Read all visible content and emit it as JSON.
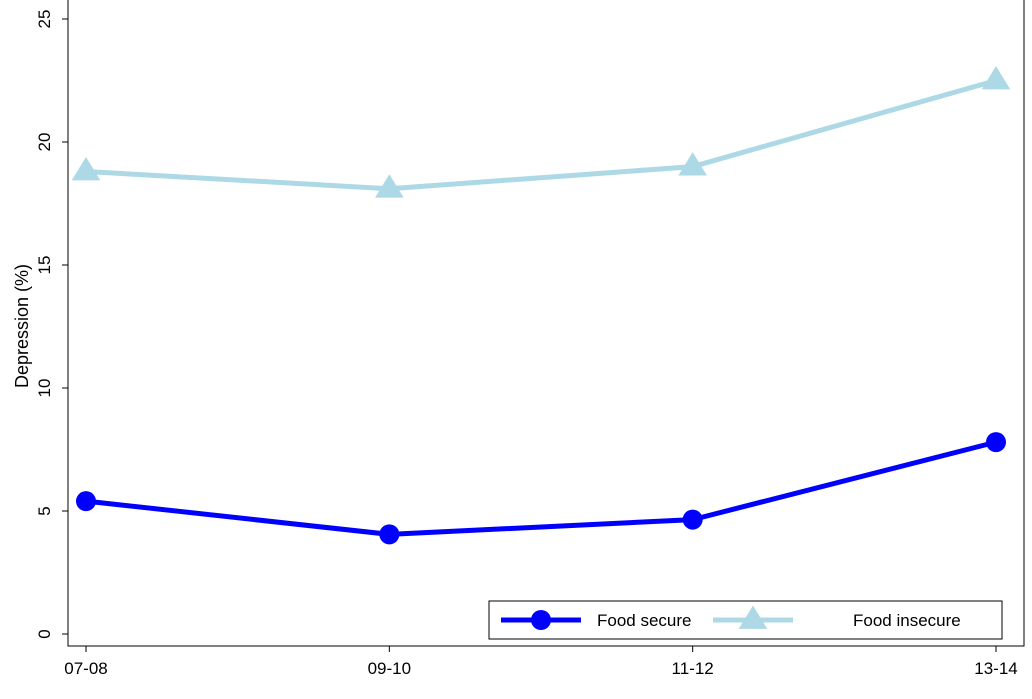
{
  "chart_data": {
    "type": "line",
    "title": "",
    "xlabel": "",
    "ylabel": "Depression (%)",
    "categories": [
      "07-08",
      "09-10",
      "11-12",
      "13-14"
    ],
    "ylim": [
      0,
      25
    ],
    "yticks": [
      0,
      5,
      10,
      15,
      20,
      25
    ],
    "grid": false,
    "legend_position": "bottom-right",
    "series": [
      {
        "name": "Food secure",
        "values": [
          5.4,
          4.05,
          4.65,
          7.8
        ],
        "color": "#0000ff",
        "marker": "circle"
      },
      {
        "name": "Food insecure",
        "values": [
          18.8,
          18.1,
          19.0,
          22.5
        ],
        "color": "#add8e6",
        "marker": "triangle"
      }
    ]
  }
}
